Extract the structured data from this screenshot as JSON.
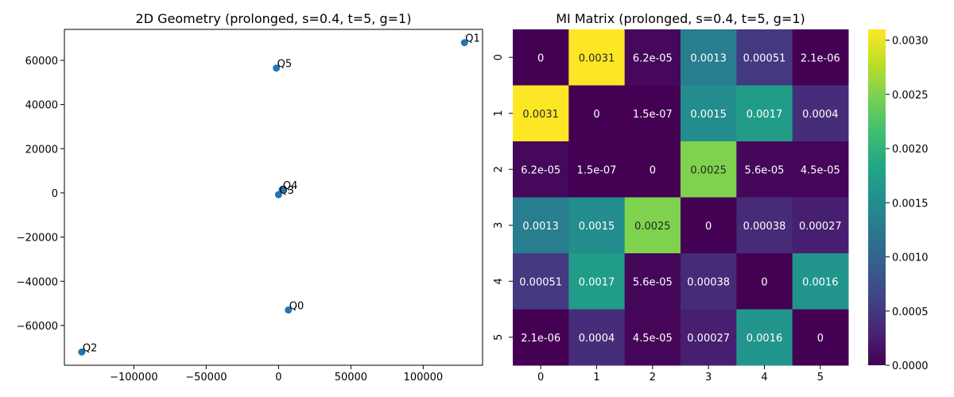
{
  "chart_data": [
    {
      "type": "scatter",
      "title": "2D Geometry (prolonged, s=0.4, t=5, g=1)",
      "xlabel": "",
      "ylabel": "",
      "xlim": [
        -148000,
        141000
      ],
      "ylim": [
        -78000,
        74000
      ],
      "xticks": [
        -100000,
        -50000,
        0,
        50000,
        100000
      ],
      "xtick_labels": [
        "−100000",
        "−50000",
        "0",
        "50000",
        "100000"
      ],
      "yticks": [
        -60000,
        -40000,
        -20000,
        0,
        20000,
        40000,
        60000
      ],
      "ytick_labels": [
        "−60000",
        "−40000",
        "−20000",
        "0",
        "20000",
        "40000",
        "60000"
      ],
      "grid": false,
      "marker_color": "#1f77b4",
      "points": [
        {
          "label": "Q0",
          "x": 6800,
          "y": -53000
        },
        {
          "label": "Q1",
          "x": 128500,
          "y": 68000
        },
        {
          "label": "Q2",
          "x": -136000,
          "y": -72000
        },
        {
          "label": "Q3",
          "x": 0,
          "y": -800
        },
        {
          "label": "Q4",
          "x": 2500,
          "y": 1500
        },
        {
          "label": "Q5",
          "x": -1500,
          "y": 56500
        }
      ]
    },
    {
      "type": "heatmap",
      "title": "MI Matrix (prolonged, s=0.4, t=5, g=1)",
      "xlabel": "",
      "ylabel": "",
      "x_categories": [
        "0",
        "1",
        "2",
        "3",
        "4",
        "5"
      ],
      "y_categories": [
        "0",
        "1",
        "2",
        "3",
        "4",
        "5"
      ],
      "colormap": "viridis",
      "vmin": 0,
      "vmax": 0.0031,
      "colorbar_ticks": [
        0,
        0.0005,
        0.001,
        0.0015,
        0.002,
        0.0025,
        0.003
      ],
      "colorbar_tick_labels": [
        "0.0000",
        "0.0005",
        "0.0010",
        "0.0015",
        "0.0020",
        "0.0025",
        "0.0030"
      ],
      "values": [
        [
          0,
          0.0031,
          6.2e-05,
          0.0013,
          0.00051,
          2.1e-06
        ],
        [
          0.0031,
          0,
          1.5e-07,
          0.0015,
          0.0017,
          0.0004
        ],
        [
          6.2e-05,
          1.5e-07,
          0,
          0.0025,
          5.6e-05,
          4.5e-05
        ],
        [
          0.0013,
          0.0015,
          0.0025,
          0,
          0.00038,
          0.00027
        ],
        [
          0.00051,
          0.0017,
          5.6e-05,
          0.00038,
          0,
          0.0016
        ],
        [
          2.1e-06,
          0.0004,
          4.5e-05,
          0.00027,
          0.0016,
          0
        ]
      ],
      "annotations": [
        [
          "0",
          "0.0031",
          "6.2e-05",
          "0.0013",
          "0.00051",
          "2.1e-06"
        ],
        [
          "0.0031",
          "0",
          "1.5e-07",
          "0.0015",
          "0.0017",
          "0.0004"
        ],
        [
          "6.2e-05",
          "1.5e-07",
          "0",
          "0.0025",
          "5.6e-05",
          "4.5e-05"
        ],
        [
          "0.0013",
          "0.0015",
          "0.0025",
          "0",
          "0.00038",
          "0.00027"
        ],
        [
          "0.00051",
          "0.0017",
          "5.6e-05",
          "0.00038",
          "0",
          "0.0016"
        ],
        [
          "2.1e-06",
          "0.0004",
          "4.5e-05",
          "0.00027",
          "0.0016",
          "0"
        ]
      ]
    }
  ]
}
